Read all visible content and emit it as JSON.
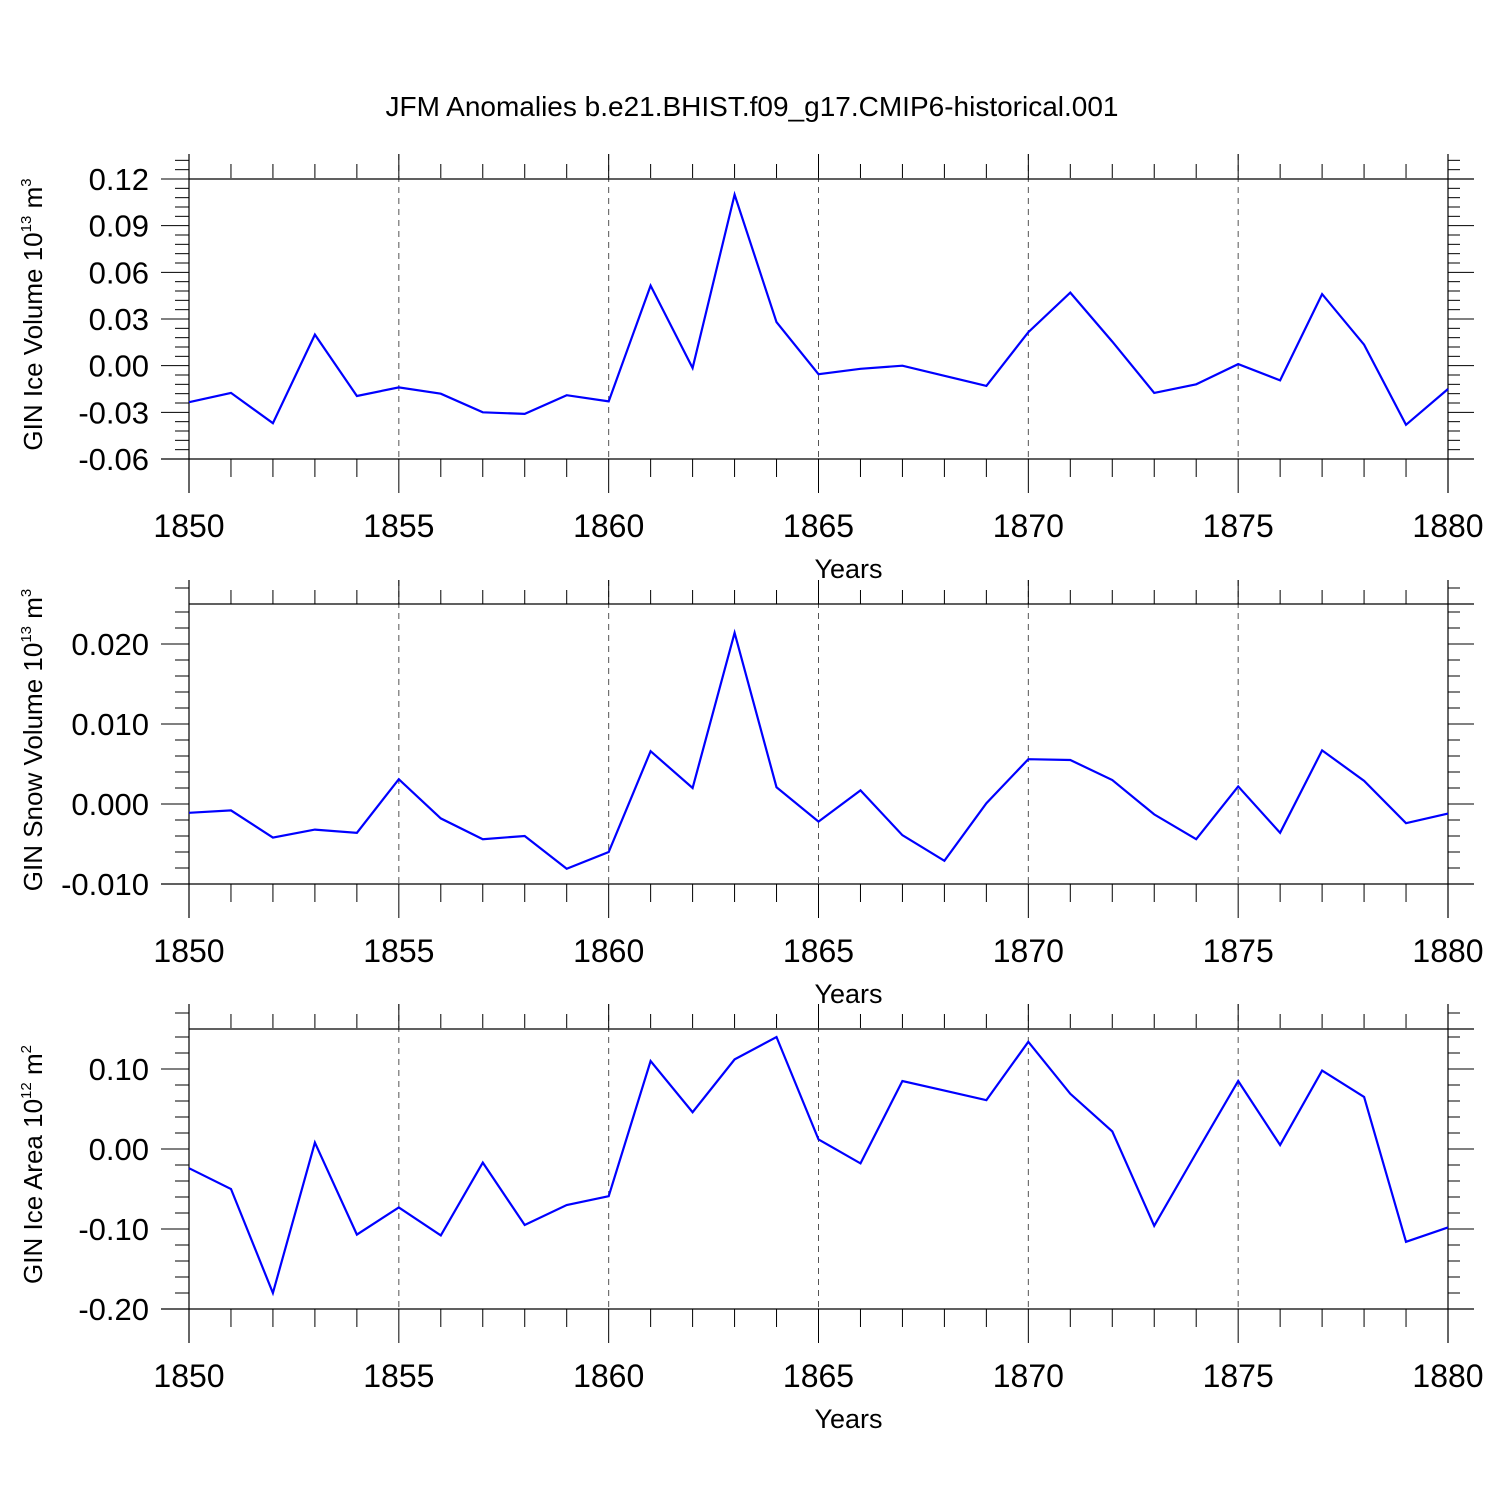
{
  "figure_title": "JFM Anomalies b.e21.BHIST.f09_g17.CMIP6-historical.001",
  "colors": {
    "line": "#0000ff",
    "axes": "#000000",
    "grid": "#555555"
  },
  "chart_data": [
    {
      "type": "line",
      "title": "JFM Anomalies b.e21.BHIST.f09_g17.CMIP6-historical.001",
      "ylabel": "GIN Ice Volume 10",
      "ylabel_exp": "13",
      "ylabel_unit": "m",
      "ylabel_unit_exp": "3",
      "xlabel": "Years",
      "xlim": [
        1850,
        1880
      ],
      "ylim": [
        -0.06,
        0.12
      ],
      "yticks": [
        -0.06,
        -0.03,
        0.0,
        0.03,
        0.06,
        0.09,
        0.12
      ],
      "ytick_labels": [
        "-0.06",
        "-0.03",
        "0.00",
        "0.03",
        "0.06",
        "0.09",
        "0.12"
      ],
      "xticks": [
        1850,
        1855,
        1860,
        1865,
        1870,
        1875,
        1880
      ],
      "xtick_labels": [
        "1850",
        "1855",
        "1860",
        "1865",
        "1870",
        "1875",
        "1880"
      ],
      "x": [
        1850,
        1851,
        1852,
        1853,
        1854,
        1855,
        1856,
        1857,
        1858,
        1859,
        1860,
        1861,
        1862,
        1863,
        1864,
        1865,
        1866,
        1867,
        1868,
        1869,
        1870,
        1871,
        1872,
        1873,
        1874,
        1875,
        1876,
        1877,
        1878,
        1879,
        1880
      ],
      "series": [
        {
          "name": "GIN Ice Volume",
          "values": [
            -0.0235,
            -0.0175,
            -0.037,
            0.02,
            -0.0195,
            -0.014,
            -0.018,
            -0.03,
            -0.031,
            -0.019,
            -0.023,
            0.0515,
            -0.0015,
            0.11,
            0.028,
            -0.0055,
            -0.002,
            0.0,
            -0.0065,
            -0.013,
            0.0215,
            0.047,
            0.0155,
            -0.0175,
            -0.012,
            0.001,
            -0.0095,
            0.046,
            0.0135,
            -0.038,
            -0.015
          ]
        }
      ]
    },
    {
      "type": "line",
      "ylabel": "GIN Snow Volume 10",
      "ylabel_exp": "13",
      "ylabel_unit": "m",
      "ylabel_unit_exp": "3",
      "xlabel": "Years",
      "xlim": [
        1850,
        1880
      ],
      "ylim": [
        -0.01,
        0.025
      ],
      "yticks": [
        -0.01,
        0.0,
        0.01,
        0.02
      ],
      "ytick_labels": [
        "-0.010",
        "0.000",
        "0.010",
        "0.020"
      ],
      "xticks": [
        1850,
        1855,
        1860,
        1865,
        1870,
        1875,
        1880
      ],
      "xtick_labels": [
        "1850",
        "1855",
        "1860",
        "1865",
        "1870",
        "1875",
        "1880"
      ],
      "x": [
        1850,
        1851,
        1852,
        1853,
        1854,
        1855,
        1856,
        1857,
        1858,
        1859,
        1860,
        1861,
        1862,
        1863,
        1864,
        1865,
        1866,
        1867,
        1868,
        1869,
        1870,
        1871,
        1872,
        1873,
        1874,
        1875,
        1876,
        1877,
        1878,
        1879,
        1880
      ],
      "series": [
        {
          "name": "GIN Snow Volume",
          "values": [
            -0.0011,
            -0.0008,
            -0.0042,
            -0.0032,
            -0.0036,
            0.0031,
            -0.0018,
            -0.0044,
            -0.004,
            -0.0081,
            -0.006,
            0.0066,
            0.002,
            0.0214,
            0.0021,
            -0.0022,
            0.0017,
            -0.0039,
            -0.0071,
            0.0001,
            0.0056,
            0.0055,
            0.003,
            -0.0013,
            -0.0044,
            0.0022,
            -0.0036,
            0.0067,
            0.0029,
            -0.0024,
            -0.0012
          ]
        }
      ]
    },
    {
      "type": "line",
      "ylabel": "GIN Ice Area 10",
      "ylabel_exp": "12",
      "ylabel_unit": "m",
      "ylabel_unit_exp": "2",
      "xlabel": "Years",
      "xlim": [
        1850,
        1880
      ],
      "ylim": [
        -0.2,
        0.15
      ],
      "yticks": [
        -0.2,
        -0.1,
        0.0,
        0.1
      ],
      "ytick_labels": [
        "-0.20",
        "-0.10",
        "0.00",
        "0.10"
      ],
      "xticks": [
        1850,
        1855,
        1860,
        1865,
        1870,
        1875,
        1880
      ],
      "xtick_labels": [
        "1850",
        "1855",
        "1860",
        "1865",
        "1870",
        "1875",
        "1880"
      ],
      "x": [
        1850,
        1851,
        1852,
        1853,
        1854,
        1855,
        1856,
        1857,
        1858,
        1859,
        1860,
        1861,
        1862,
        1863,
        1864,
        1865,
        1866,
        1867,
        1868,
        1869,
        1870,
        1871,
        1872,
        1873,
        1874,
        1875,
        1876,
        1877,
        1878,
        1879,
        1880
      ],
      "series": [
        {
          "name": "GIN Ice Area",
          "values": [
            -0.024,
            -0.05,
            -0.18,
            0.008,
            -0.107,
            -0.073,
            -0.108,
            -0.017,
            -0.095,
            -0.07,
            -0.059,
            0.11,
            0.046,
            0.112,
            0.14,
            0.012,
            -0.018,
            0.085,
            0.073,
            0.061,
            0.134,
            0.069,
            0.022,
            -0.096,
            -0.005,
            0.085,
            0.005,
            0.098,
            0.065,
            -0.116,
            -0.098
          ]
        }
      ]
    }
  ]
}
